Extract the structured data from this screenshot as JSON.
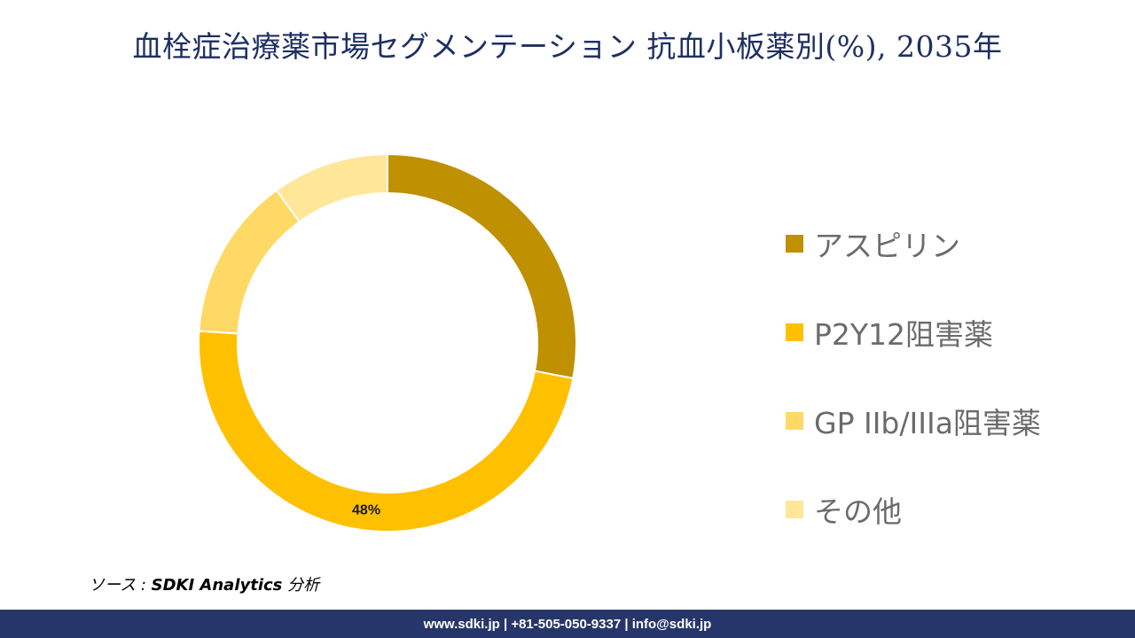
{
  "header": {
    "title": "血栓症治療薬市場セグメンテーション 抗血小板薬別(%), 2035年"
  },
  "chart_data": {
    "type": "pie",
    "style": "donut",
    "title": "血栓症治療薬市場セグメンテーション 抗血小板薬別(%), 2035年",
    "categories": [
      "アスピリン",
      "P2Y12阻害薬",
      "GP IIb/IIIa阻害薬",
      "その他"
    ],
    "values": [
      28,
      48,
      14,
      10
    ],
    "colors": [
      "#bf9000",
      "#ffc000",
      "#ffd966",
      "#ffe699"
    ],
    "data_labels": [
      "",
      "48%",
      "",
      ""
    ],
    "legend_position": "right"
  },
  "source": {
    "prefix": "ソース : ",
    "name": "SDKI Analytics",
    "suffix": " 分析"
  },
  "footer": {
    "contact": "www.sdki.jp | +81-505-050-9337 | info@sdki.jp"
  }
}
